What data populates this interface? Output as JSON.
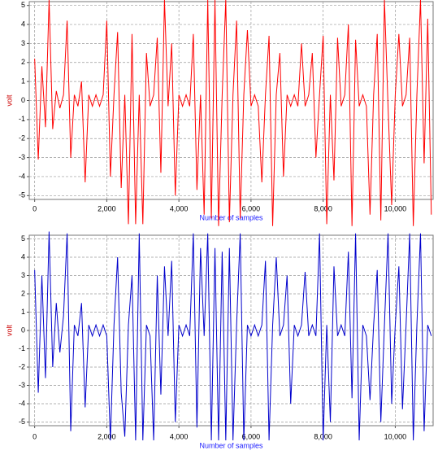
{
  "chart_data": [
    {
      "type": "line",
      "color": "#ff0000",
      "x_label": "Number of samples",
      "y_label": "volt",
      "grid": true,
      "xlim": [
        -150,
        11050
      ],
      "ylim": [
        -5.2,
        5.2
      ],
      "xticks": [
        0,
        {
          "value": 2000,
          "label": "2,000"
        },
        {
          "value": 4000,
          "label": "4,000"
        },
        {
          "value": 6000,
          "label": "6,000"
        },
        {
          "value": 8000,
          "label": "8,000"
        },
        {
          "value": 10000,
          "label": "10,000"
        }
      ],
      "yticks": [
        -5,
        -4,
        -3,
        -2,
        -1,
        0,
        1,
        2,
        3,
        4,
        5
      ],
      "x": [
        0,
        100,
        200,
        300,
        400,
        500,
        600,
        700,
        800,
        900,
        1000,
        1100,
        1200,
        1300,
        1400,
        1500,
        1600,
        1700,
        1800,
        1900,
        2000,
        2100,
        2200,
        2300,
        2400,
        2500,
        2600,
        2700,
        2800,
        2900,
        3000,
        3100,
        3200,
        3300,
        3400,
        3500,
        3600,
        3700,
        3800,
        3900,
        4000,
        4100,
        4200,
        4300,
        4400,
        4500,
        4600,
        4700,
        4800,
        4900,
        5000,
        5100,
        5200,
        5300,
        5400,
        5500,
        5600,
        5700,
        5800,
        5900,
        6000,
        6100,
        6200,
        6300,
        6400,
        6500,
        6600,
        6700,
        6800,
        6900,
        7000,
        7100,
        7200,
        7300,
        7400,
        7500,
        7600,
        7700,
        7800,
        7900,
        8000,
        8100,
        8200,
        8300,
        8400,
        8500,
        8600,
        8700,
        8800,
        8900,
        9000,
        9100,
        9200,
        9300,
        9400,
        9500,
        9600,
        9700,
        9800,
        9900,
        10000,
        10100,
        10200,
        10300,
        10400,
        10500,
        10600,
        10700,
        10800,
        10900,
        11000
      ],
      "values": [
        2.2,
        -3.1,
        1.8,
        -1.4,
        5.3,
        -1.5,
        0.5,
        -0.4,
        0.3,
        4.2,
        -3,
        0.3,
        -0.3,
        1.0,
        -4.3,
        0.3,
        -0.3,
        0.3,
        -0.3,
        0.3,
        4.2,
        -4,
        0.3,
        3.6,
        -4.6,
        0.3,
        -6.5,
        3.5,
        -6.5,
        0.3,
        -6.5,
        2.5,
        -0.3,
        0.3,
        3.3,
        -3.8,
        5.3,
        -0.3,
        3.0,
        -5,
        0.3,
        -0.3,
        0.3,
        -0.3,
        3.5,
        -4.7,
        0.3,
        -6,
        5.3,
        -6.2,
        5.3,
        -6.6,
        0.3,
        5.3,
        -6.4,
        0.3,
        4.2,
        -6.2,
        0.3,
        3.7,
        -0.3,
        0.3,
        -0.3,
        -4.3,
        0.3,
        3.4,
        -6.6,
        0.3,
        2.5,
        -4,
        0.3,
        -0.3,
        0.3,
        -0.3,
        3.0,
        -0.3,
        0.3,
        2.5,
        -3.0,
        0.3,
        3.4,
        -6.5,
        0.3,
        -4.2,
        3.3,
        -0.3,
        0.3,
        4.0,
        -6.6,
        3.2,
        -0.3,
        0.3,
        -0.3,
        -6,
        0.3,
        3.5,
        -6.3,
        5.3,
        -0.3,
        -5.5,
        0.3,
        3.5,
        -0.3,
        0.3,
        3.3,
        -6.6,
        0.3,
        5.3,
        -3.3,
        4.3,
        -6
      ]
    },
    {
      "type": "line",
      "color": "#0000cc",
      "x_label": "Number of samples",
      "y_label": "volt",
      "grid": true,
      "xlim": [
        -150,
        11050
      ],
      "ylim": [
        -5.2,
        5.2
      ],
      "xticks": [
        0,
        {
          "value": 2000,
          "label": "2,000"
        },
        {
          "value": 4000,
          "label": "4,000"
        },
        {
          "value": 6000,
          "label": "6,000"
        },
        {
          "value": 8000,
          "label": "8,000"
        },
        {
          "value": 10000,
          "label": "10,000"
        }
      ],
      "yticks": [
        -5,
        -4,
        -3,
        -2,
        -1,
        0,
        1,
        2,
        3,
        4,
        5
      ],
      "x": [
        0,
        100,
        200,
        300,
        400,
        500,
        600,
        700,
        800,
        900,
        1000,
        1100,
        1200,
        1300,
        1400,
        1500,
        1600,
        1700,
        1800,
        1900,
        2000,
        2100,
        2200,
        2300,
        2400,
        2500,
        2600,
        2700,
        2800,
        2900,
        3000,
        3100,
        3200,
        3300,
        3400,
        3500,
        3600,
        3700,
        3800,
        3900,
        4000,
        4100,
        4200,
        4300,
        4400,
        4500,
        4600,
        4700,
        4800,
        4900,
        5000,
        5100,
        5200,
        5300,
        5400,
        5500,
        5600,
        5700,
        5800,
        5900,
        6000,
        6100,
        6200,
        6300,
        6400,
        6500,
        6600,
        6700,
        6800,
        6900,
        7000,
        7100,
        7200,
        7300,
        7400,
        7500,
        7600,
        7700,
        7800,
        7900,
        8000,
        8100,
        8200,
        8300,
        8400,
        8500,
        8600,
        8700,
        8800,
        8900,
        9000,
        9100,
        9200,
        9300,
        9400,
        9500,
        9600,
        9700,
        9800,
        9900,
        10000,
        10100,
        10200,
        10300,
        10400,
        10500,
        10600,
        10700,
        10800,
        10900,
        11000
      ],
      "values": [
        3.3,
        -3.4,
        3.0,
        -2.6,
        5.4,
        -2.0,
        1.5,
        -1.2,
        0.8,
        5.3,
        -5.5,
        0.3,
        -0.3,
        1.5,
        -4.2,
        0.3,
        -0.3,
        0.3,
        -0.3,
        0.3,
        -0.3,
        -6,
        0.3,
        4.0,
        -3.4,
        -5.8,
        0.3,
        3.0,
        -6,
        5.3,
        -6,
        0.3,
        -0.3,
        -6,
        3.0,
        -3.5,
        3.5,
        -0.3,
        3.8,
        -5,
        0.3,
        -0.3,
        0.3,
        -0.3,
        5.3,
        -5.3,
        4.5,
        -0.3,
        5.3,
        -6,
        4.5,
        -6,
        4.3,
        -6,
        4.5,
        -6,
        0.3,
        5.3,
        -6,
        0.3,
        -0.3,
        0.3,
        -0.3,
        0.3,
        3.8,
        -6,
        0.3,
        4.0,
        -0.3,
        0.3,
        3.0,
        -4,
        0.3,
        -0.3,
        0.3,
        3.2,
        -0.3,
        0.3,
        -0.3,
        5.3,
        -6,
        0.3,
        -5,
        3.5,
        -0.3,
        0.3,
        -0.3,
        4.3,
        -3.7,
        5.3,
        -6,
        0.3,
        -0.3,
        -3.8,
        0.3,
        3.3,
        -5,
        0.3,
        5.3,
        -4,
        0.3,
        3.5,
        -4.3,
        0.3,
        5.3,
        -6,
        0.3,
        5.3,
        -5.5,
        0.3,
        -0.3
      ]
    }
  ]
}
